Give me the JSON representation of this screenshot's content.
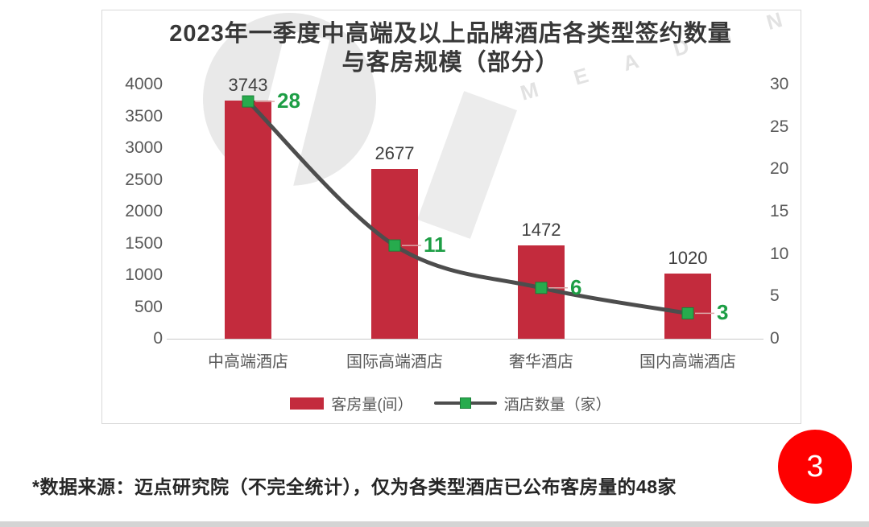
{
  "page": {
    "footnote": "*数据来源：迈点研究院（不完全统计），仅为各类型酒店已公布客房量的48家",
    "page_number": "3",
    "watermark_text": "M E A D I N"
  },
  "chart_data": {
    "type": "bar",
    "title": "2023年一季度中高端及以上品牌酒店各类型签约数量",
    "subtitle": "与客房规模（部分）",
    "categories": [
      "中高端酒店",
      "国际高端酒店",
      "奢华酒店",
      "国内高端酒店"
    ],
    "series": [
      {
        "name": "客房量(间）",
        "type": "bar",
        "axis": "left",
        "color": "#c32b3d",
        "values": [
          3743,
          2677,
          1472,
          1020
        ]
      },
      {
        "name": "酒店数量（家）",
        "type": "line",
        "axis": "right",
        "color": "#4d4d4d",
        "marker_color": "#27ab4d",
        "label_color": "#1d9e45",
        "values": [
          28,
          11,
          6,
          3
        ]
      }
    ],
    "left_axis": {
      "min": 0,
      "max": 4000,
      "step": 500,
      "ticks": [
        4000,
        3500,
        3000,
        2500,
        2000,
        1500,
        1000,
        500,
        0
      ]
    },
    "right_axis": {
      "min": 0,
      "max": 30,
      "step": 5,
      "ticks": [
        30,
        25,
        20,
        15,
        10,
        5,
        0
      ]
    },
    "grid": false,
    "legend_position": "bottom"
  }
}
